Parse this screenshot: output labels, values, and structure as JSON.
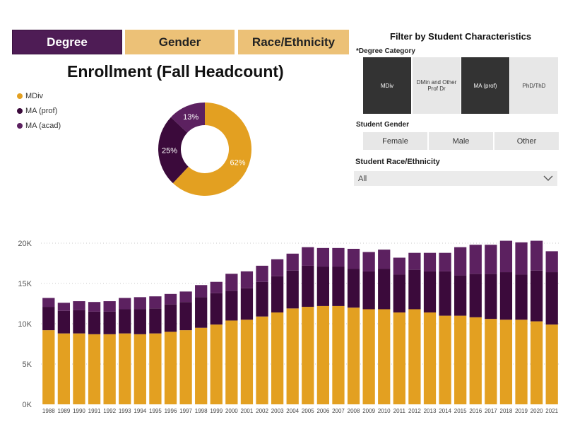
{
  "tabs": [
    {
      "label": "Degree"
    },
    {
      "label": "Gender"
    },
    {
      "label": "Race/Ethnicity"
    }
  ],
  "title": "Enrollment (Fall Headcount)",
  "legend": [
    {
      "label": "MDiv",
      "color": "#e3a021"
    },
    {
      "label": "MA (prof)",
      "color": "#3b0a3b"
    },
    {
      "label": "MA (acad)",
      "color": "#5c2160"
    }
  ],
  "filters": {
    "title": "Filter by Student Characteristics",
    "degree_label": "*Degree Category",
    "degree_options": [
      {
        "label": "MDiv",
        "selected": true
      },
      {
        "label": "DMin and Other Prof Dr",
        "selected": false
      },
      {
        "label": "MA (prof)",
        "selected": true
      },
      {
        "label": "PhD/ThD",
        "selected": false
      }
    ],
    "gender_label": "Student Gender",
    "gender_options": [
      "Female",
      "Male",
      "Other"
    ],
    "race_label": "Student Race/Ethnicity",
    "race_value": "All"
  },
  "chart_data": [
    {
      "type": "pie",
      "variant": "donut",
      "categories": [
        "MDiv",
        "MA (prof)",
        "MA (acad)"
      ],
      "values": [
        62,
        25,
        13
      ],
      "labels": [
        "62%",
        "25%",
        "13%"
      ],
      "colors": [
        "#e3a021",
        "#3b0a3b",
        "#5c2160"
      ]
    },
    {
      "type": "bar",
      "stacked": true,
      "categories": [
        "1988",
        "1989",
        "1990",
        "1991",
        "1992",
        "1993",
        "1994",
        "1995",
        "1996",
        "1997",
        "1998",
        "1999",
        "2000",
        "2001",
        "2002",
        "2003",
        "2004",
        "2005",
        "2006",
        "2007",
        "2008",
        "2009",
        "2010",
        "2011",
        "2012",
        "2013",
        "2014",
        "2015",
        "2016",
        "2017",
        "2018",
        "2019",
        "2020",
        "2021"
      ],
      "series": [
        {
          "name": "MDiv",
          "color": "#e3a021",
          "values": [
            9200,
            8800,
            8800,
            8700,
            8700,
            8800,
            8700,
            8800,
            9000,
            9200,
            9500,
            9900,
            10400,
            10500,
            10900,
            11400,
            11900,
            12100,
            12200,
            12200,
            12000,
            11800,
            11800,
            11400,
            11800,
            11400,
            11000,
            11000,
            10800,
            10600,
            10500,
            10500,
            10300,
            9900
          ]
        },
        {
          "name": "MA (prof)",
          "color": "#3b0a3b",
          "values": [
            2900,
            2800,
            2900,
            2800,
            2800,
            3000,
            3100,
            3100,
            3400,
            3500,
            3800,
            3900,
            3700,
            3900,
            4300,
            4500,
            4700,
            5100,
            4900,
            4900,
            4800,
            4700,
            5000,
            4700,
            4900,
            5100,
            5500,
            5000,
            5400,
            5600,
            5900,
            5600,
            6300,
            6500
          ]
        },
        {
          "name": "MA (acad)",
          "color": "#5c2160",
          "values": [
            1100,
            1000,
            1100,
            1200,
            1300,
            1400,
            1500,
            1500,
            1300,
            1300,
            1500,
            1400,
            2100,
            2100,
            2000,
            2100,
            2100,
            2300,
            2300,
            2300,
            2500,
            2400,
            2400,
            2100,
            2100,
            2300,
            2300,
            3500,
            3600,
            3600,
            3900,
            4000,
            3700,
            2600
          ]
        }
      ],
      "yticks": [
        "0K",
        "5K",
        "10K",
        "15K",
        "20K"
      ],
      "ylim": [
        0,
        20000
      ],
      "grid": true
    }
  ]
}
